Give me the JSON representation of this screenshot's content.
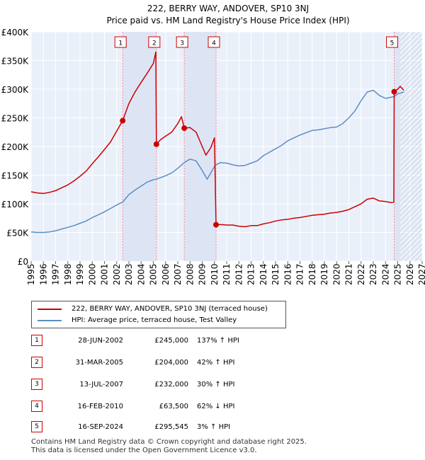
{
  "chart_data": {
    "type": "line",
    "title": "222, BERRY WAY, ANDOVER, SP10 3NJ",
    "subtitle": "Price paid vs. HM Land Registry's House Price Index (HPI)",
    "xlim": [
      1995,
      2027
    ],
    "ylim": [
      0,
      400000
    ],
    "x_ticks": [
      "1995",
      "1996",
      "1997",
      "1998",
      "1999",
      "2000",
      "2001",
      "2002",
      "2003",
      "2004",
      "2005",
      "2006",
      "2007",
      "2008",
      "2009",
      "2010",
      "2011",
      "2012",
      "2013",
      "2014",
      "2015",
      "2016",
      "2017",
      "2018",
      "2019",
      "2020",
      "2021",
      "2022",
      "2023",
      "2024",
      "2025",
      "2026",
      "2027"
    ],
    "y_ticks": [
      {
        "value": 0,
        "label": "£0"
      },
      {
        "value": 50000,
        "label": "£50K"
      },
      {
        "value": 100000,
        "label": "£100K"
      },
      {
        "value": 150000,
        "label": "£150K"
      },
      {
        "value": 200000,
        "label": "£200K"
      },
      {
        "value": 250000,
        "label": "£250K"
      },
      {
        "value": 300000,
        "label": "£300K"
      },
      {
        "value": 350000,
        "label": "£350K"
      },
      {
        "value": 400000,
        "label": "£400K"
      }
    ],
    "shaded_ranges": [
      [
        2002.49,
        2005.25
      ],
      [
        2007.53,
        2010.13
      ],
      [
        2024.71,
        2025.2
      ]
    ],
    "hatched_range": [
      2025.2,
      2027
    ],
    "colors": {
      "property": "#cc0000",
      "hpi": "#5b8ec4",
      "shade": "#dde5f5",
      "marker_line": "#ff8888"
    },
    "series": [
      {
        "name": "222, BERRY WAY, ANDOVER, SP10 3NJ (terraced house)",
        "color": "#cc0000",
        "points": [
          [
            1995.0,
            121000
          ],
          [
            1995.5,
            119000
          ],
          [
            1996.0,
            118000
          ],
          [
            1996.5,
            120000
          ],
          [
            1997.0,
            123000
          ],
          [
            1997.5,
            128000
          ],
          [
            1998.0,
            133000
          ],
          [
            1998.5,
            140000
          ],
          [
            1999.0,
            148000
          ],
          [
            1999.5,
            157000
          ],
          [
            2000.0,
            170000
          ],
          [
            2000.5,
            182000
          ],
          [
            2001.0,
            195000
          ],
          [
            2001.5,
            208000
          ],
          [
            2002.0,
            227000
          ],
          [
            2002.49,
            245000
          ],
          [
            2003.0,
            275000
          ],
          [
            2003.5,
            295000
          ],
          [
            2004.0,
            312000
          ],
          [
            2004.5,
            328000
          ],
          [
            2005.0,
            345000
          ],
          [
            2005.2,
            365000
          ],
          [
            2005.25,
            204000
          ],
          [
            2005.6,
            212000
          ],
          [
            2006.0,
            218000
          ],
          [
            2006.5,
            225000
          ],
          [
            2007.0,
            240000
          ],
          [
            2007.3,
            252000
          ],
          [
            2007.53,
            232000
          ],
          [
            2008.0,
            233000
          ],
          [
            2008.5,
            225000
          ],
          [
            2009.0,
            200000
          ],
          [
            2009.3,
            185000
          ],
          [
            2009.7,
            198000
          ],
          [
            2010.0,
            215000
          ],
          [
            2010.13,
            63500
          ],
          [
            2010.5,
            64000
          ],
          [
            2011.0,
            63000
          ],
          [
            2011.5,
            63000
          ],
          [
            2012.0,
            61000
          ],
          [
            2012.5,
            60000
          ],
          [
            2013.0,
            62000
          ],
          [
            2013.5,
            62000
          ],
          [
            2014.0,
            65000
          ],
          [
            2014.5,
            67000
          ],
          [
            2015.0,
            70000
          ],
          [
            2015.5,
            72000
          ],
          [
            2016.0,
            73000
          ],
          [
            2016.5,
            75000
          ],
          [
            2017.0,
            76000
          ],
          [
            2017.5,
            78000
          ],
          [
            2018.0,
            80000
          ],
          [
            2018.5,
            81000
          ],
          [
            2019.0,
            82000
          ],
          [
            2019.5,
            84000
          ],
          [
            2020.0,
            85000
          ],
          [
            2020.5,
            87000
          ],
          [
            2021.0,
            90000
          ],
          [
            2021.5,
            95000
          ],
          [
            2022.0,
            100000
          ],
          [
            2022.5,
            108000
          ],
          [
            2023.0,
            110000
          ],
          [
            2023.5,
            105000
          ],
          [
            2024.0,
            104000
          ],
          [
            2024.5,
            102000
          ],
          [
            2024.68,
            103000
          ],
          [
            2024.71,
            295545
          ],
          [
            2025.0,
            300000
          ],
          [
            2025.2,
            305000
          ],
          [
            2025.5,
            298000
          ]
        ]
      },
      {
        "name": "HPI: Average price, terraced house, Test Valley",
        "color": "#5b8ec4",
        "points": [
          [
            1995.0,
            51000
          ],
          [
            1995.5,
            50000
          ],
          [
            1996.0,
            50000
          ],
          [
            1996.5,
            51000
          ],
          [
            1997.0,
            53000
          ],
          [
            1997.5,
            56000
          ],
          [
            1998.0,
            59000
          ],
          [
            1998.5,
            62000
          ],
          [
            1999.0,
            66000
          ],
          [
            1999.5,
            70000
          ],
          [
            2000.0,
            76000
          ],
          [
            2000.5,
            81000
          ],
          [
            2001.0,
            86000
          ],
          [
            2001.5,
            92000
          ],
          [
            2002.0,
            98000
          ],
          [
            2002.49,
            103000
          ],
          [
            2003.0,
            116000
          ],
          [
            2003.5,
            124000
          ],
          [
            2004.0,
            131000
          ],
          [
            2004.5,
            138000
          ],
          [
            2005.0,
            142000
          ],
          [
            2005.25,
            143000
          ],
          [
            2006.0,
            149000
          ],
          [
            2006.5,
            154000
          ],
          [
            2007.0,
            162000
          ],
          [
            2007.53,
            172000
          ],
          [
            2008.0,
            178000
          ],
          [
            2008.5,
            175000
          ],
          [
            2009.0,
            158000
          ],
          [
            2009.4,
            143000
          ],
          [
            2010.0,
            165000
          ],
          [
            2010.13,
            168000
          ],
          [
            2010.5,
            172000
          ],
          [
            2011.0,
            171000
          ],
          [
            2011.5,
            168000
          ],
          [
            2012.0,
            166000
          ],
          [
            2012.5,
            167000
          ],
          [
            2013.0,
            171000
          ],
          [
            2013.5,
            175000
          ],
          [
            2014.0,
            184000
          ],
          [
            2014.5,
            190000
          ],
          [
            2015.0,
            196000
          ],
          [
            2015.5,
            202000
          ],
          [
            2016.0,
            210000
          ],
          [
            2016.5,
            215000
          ],
          [
            2017.0,
            220000
          ],
          [
            2017.5,
            224000
          ],
          [
            2018.0,
            228000
          ],
          [
            2018.5,
            229000
          ],
          [
            2019.0,
            231000
          ],
          [
            2019.5,
            233000
          ],
          [
            2020.0,
            234000
          ],
          [
            2020.5,
            240000
          ],
          [
            2021.0,
            250000
          ],
          [
            2021.5,
            262000
          ],
          [
            2022.0,
            280000
          ],
          [
            2022.5,
            295000
          ],
          [
            2023.0,
            298000
          ],
          [
            2023.5,
            289000
          ],
          [
            2024.0,
            284000
          ],
          [
            2024.71,
            287000
          ],
          [
            2025.0,
            292000
          ],
          [
            2025.5,
            295000
          ]
        ]
      }
    ],
    "sales": [
      {
        "n": "1",
        "date": "28-JUN-2002",
        "year": 2002.49,
        "price": 245000,
        "price_label": "£245,000",
        "hpi_label": "137% ↑ HPI"
      },
      {
        "n": "2",
        "date": "31-MAR-2005",
        "year": 2005.25,
        "price": 204000,
        "price_label": "£204,000",
        "hpi_label": "42% ↑ HPI"
      },
      {
        "n": "3",
        "date": "13-JUL-2007",
        "year": 2007.53,
        "price": 232000,
        "price_label": "£232,000",
        "hpi_label": "30% ↑ HPI"
      },
      {
        "n": "4",
        "date": "16-FEB-2010",
        "year": 2010.13,
        "price": 63500,
        "price_label": "£63,500",
        "hpi_label": "62% ↓ HPI"
      },
      {
        "n": "5",
        "date": "16-SEP-2024",
        "year": 2024.71,
        "price": 295545,
        "price_label": "£295,545",
        "hpi_label": "3% ↑ HPI"
      }
    ]
  },
  "legend": {
    "property_label": "222, BERRY WAY, ANDOVER, SP10 3NJ (terraced house)",
    "hpi_label": "HPI: Average price, terraced house, Test Valley"
  },
  "footer": {
    "line1": "Contains HM Land Registry data © Crown copyright and database right 2025.",
    "line2": "This data is licensed under the Open Government Licence v3.0."
  }
}
